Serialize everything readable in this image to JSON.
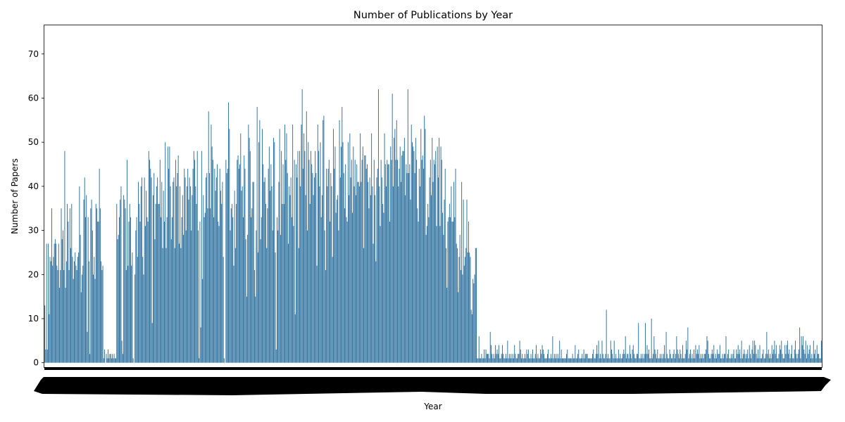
{
  "chart_data": {
    "type": "bar",
    "title": "Number of Publications by Year",
    "xlabel": "Year",
    "ylabel": "Number of Papers",
    "ylim": [
      -1,
      76.5
    ],
    "yticks": [
      0,
      10,
      20,
      30,
      40,
      50,
      60,
      70
    ],
    "bar_color": "#3274a1",
    "grid": false,
    "legend": "none",
    "values": [
      13,
      3,
      27,
      3,
      27,
      11,
      24,
      23,
      35,
      22,
      24,
      27,
      28,
      27,
      22,
      21,
      27,
      17,
      21,
      35,
      28,
      30,
      21,
      48,
      17,
      23,
      36,
      32,
      21,
      35,
      26,
      36,
      24,
      19,
      23,
      25,
      22,
      21,
      24,
      25,
      40,
      29,
      16,
      20,
      22,
      37,
      42,
      33,
      38,
      7,
      33,
      23,
      2,
      35,
      37,
      30,
      20,
      24,
      19,
      36,
      35,
      32,
      32,
      44,
      35,
      23,
      21,
      22,
      1,
      3,
      0,
      2,
      1,
      3,
      1,
      2,
      2,
      1,
      2,
      1,
      2,
      1,
      1,
      36,
      28,
      29,
      33,
      37,
      40,
      5,
      2,
      38,
      37,
      35,
      21,
      46,
      22,
      32,
      36,
      33,
      22,
      25,
      1,
      0,
      20,
      30,
      33,
      24,
      41,
      36,
      32,
      40,
      42,
      24,
      20,
      42,
      31,
      39,
      33,
      32,
      48,
      46,
      44,
      42,
      9,
      38,
      43,
      28,
      36,
      40,
      42,
      36,
      36,
      46,
      33,
      41,
      26,
      39,
      32,
      50,
      26,
      33,
      49,
      44,
      49,
      40,
      28,
      33,
      41,
      42,
      26,
      46,
      40,
      43,
      47,
      27,
      40,
      26,
      33,
      38,
      29,
      44,
      42,
      30,
      40,
      44,
      37,
      42,
      40,
      30,
      38,
      44,
      48,
      46,
      40,
      36,
      48,
      30,
      1,
      32,
      8,
      48,
      19,
      38,
      33,
      34,
      42,
      43,
      35,
      57,
      43,
      35,
      54,
      49,
      46,
      33,
      44,
      39,
      42,
      45,
      32,
      31,
      44,
      39,
      36,
      41,
      24,
      1,
      0,
      46,
      43,
      44,
      59,
      53,
      30,
      35,
      36,
      33,
      22,
      39,
      26,
      36,
      46,
      47,
      44,
      45,
      52,
      39,
      40,
      33,
      47,
      44,
      28,
      15,
      29,
      54,
      51,
      48,
      33,
      35,
      41,
      41,
      21,
      15,
      30,
      58,
      25,
      50,
      55,
      28,
      33,
      53,
      45,
      41,
      42,
      36,
      26,
      35,
      44,
      49,
      39,
      45,
      40,
      30,
      51,
      50,
      25,
      3,
      33,
      30,
      41,
      53,
      29,
      48,
      36,
      45,
      36,
      54,
      46,
      52,
      43,
      27,
      40,
      38,
      42,
      33,
      54,
      31,
      46,
      11,
      45,
      42,
      48,
      26,
      48,
      40,
      54,
      62,
      44,
      52,
      48,
      38,
      57,
      30,
      50,
      46,
      36,
      48,
      45,
      43,
      38,
      42,
      48,
      43,
      22,
      54,
      48,
      40,
      50,
      33,
      38,
      55,
      56,
      30,
      21,
      44,
      40,
      44,
      46,
      32,
      43,
      40,
      24,
      53,
      44,
      49,
      34,
      37,
      38,
      30,
      55,
      42,
      49,
      58,
      50,
      43,
      35,
      45,
      33,
      32,
      50,
      38,
      52,
      42,
      46,
      34,
      49,
      40,
      46,
      38,
      45,
      41,
      41,
      40,
      52,
      41,
      46,
      49,
      26,
      47,
      47,
      44,
      45,
      41,
      35,
      42,
      38,
      52,
      40,
      27,
      46,
      38,
      23,
      42,
      44,
      62,
      40,
      31,
      46,
      42,
      36,
      34,
      52,
      45,
      40,
      46,
      45,
      45,
      32,
      49,
      46,
      61,
      40,
      51,
      53,
      46,
      55,
      46,
      40,
      44,
      49,
      41,
      47,
      48,
      48,
      51,
      38,
      45,
      43,
      62,
      43,
      45,
      37,
      54,
      50,
      49,
      48,
      43,
      51,
      46,
      35,
      32,
      44,
      40,
      53,
      46,
      47,
      44,
      56,
      53,
      29,
      31,
      36,
      33,
      42,
      46,
      38,
      51,
      41,
      46,
      45,
      48,
      31,
      49,
      42,
      51,
      31,
      49,
      46,
      34,
      29,
      37,
      44,
      26,
      17,
      32,
      33,
      36,
      33,
      40,
      32,
      32,
      41,
      33,
      44,
      27,
      26,
      16,
      24,
      29,
      21,
      41,
      20,
      37,
      22,
      24,
      26,
      37,
      25,
      32,
      25,
      24,
      12,
      11,
      19,
      18,
      20,
      26,
      26,
      1,
      1,
      6,
      1,
      1,
      2,
      1,
      1,
      3,
      1,
      3,
      2,
      2,
      2,
      1,
      7,
      4,
      2,
      1,
      2,
      1,
      4,
      2,
      3,
      2,
      4,
      1,
      1,
      2,
      4,
      2,
      1,
      1,
      2,
      1,
      5,
      1,
      2,
      1,
      2,
      1,
      2,
      1,
      4,
      2,
      1,
      1,
      2,
      2,
      5,
      3,
      1,
      2,
      1,
      1,
      2,
      1,
      3,
      2,
      3,
      1,
      1,
      2,
      1,
      3,
      1,
      1,
      2,
      4,
      1,
      2,
      1,
      1,
      3,
      2,
      4,
      3,
      2,
      1,
      1,
      1,
      2,
      3,
      1,
      1,
      2,
      1,
      6,
      1,
      2,
      1,
      2,
      1,
      2,
      1,
      5,
      1,
      3,
      1,
      1,
      1,
      1,
      1,
      2,
      3,
      1,
      1,
      1,
      1,
      1,
      2,
      1,
      1,
      4,
      1,
      1,
      2,
      3,
      1,
      1,
      1,
      2,
      1,
      3,
      1,
      2,
      2,
      2,
      1,
      1,
      1,
      1,
      1,
      2,
      3,
      1,
      1,
      2,
      4,
      2,
      5,
      1,
      2,
      1,
      5,
      2,
      1,
      1,
      2,
      12,
      1,
      2,
      1,
      1,
      5,
      3,
      2,
      1,
      5,
      1,
      2,
      1,
      1,
      3,
      1,
      2,
      1,
      1,
      2,
      3,
      2,
      6,
      1,
      2,
      2,
      1,
      4,
      2,
      1,
      3,
      4,
      2,
      1,
      1,
      2,
      2,
      9,
      1,
      1,
      2,
      1,
      2,
      1,
      2,
      9,
      2,
      4,
      2,
      3,
      1,
      1,
      10,
      1,
      2,
      6,
      3,
      2,
      1,
      3,
      1,
      1,
      2,
      1,
      2,
      1,
      2,
      4,
      1,
      7,
      2,
      1,
      1,
      3,
      2,
      1,
      1,
      2,
      3,
      1,
      2,
      6,
      3,
      2,
      1,
      3,
      2,
      1,
      4,
      1,
      1,
      2,
      5,
      3,
      8,
      1,
      2,
      3,
      1,
      2,
      1,
      3,
      1,
      4,
      2,
      3,
      2,
      4,
      1,
      2,
      1,
      2,
      1,
      2,
      2,
      3,
      6,
      5,
      2,
      1,
      1,
      2,
      3,
      2,
      4,
      1,
      2,
      1,
      3,
      2,
      2,
      4,
      1,
      1,
      2,
      1,
      2,
      2,
      6,
      1,
      2,
      3,
      1,
      1,
      2,
      1,
      2,
      3,
      1,
      1,
      3,
      2,
      4,
      2,
      3,
      1,
      5,
      1,
      2,
      3,
      2,
      1,
      2,
      3,
      1,
      4,
      2,
      1,
      3,
      5,
      2,
      5,
      4,
      2,
      1,
      3,
      1,
      4,
      1,
      1,
      2,
      3,
      1,
      1,
      2,
      7,
      2,
      3,
      1,
      2,
      1,
      4,
      2,
      3,
      5,
      2,
      4,
      1,
      1,
      2,
      4,
      3,
      5,
      2,
      1,
      1,
      4,
      2,
      4,
      5,
      2,
      3,
      1,
      2,
      4,
      1,
      1,
      3,
      5,
      2,
      1,
      2,
      3,
      8,
      1,
      6,
      4,
      6,
      3,
      2,
      5,
      1,
      4,
      2,
      3,
      4,
      1,
      2,
      1,
      5,
      2,
      3,
      1,
      4,
      2,
      2,
      1,
      1,
      5
    ]
  }
}
